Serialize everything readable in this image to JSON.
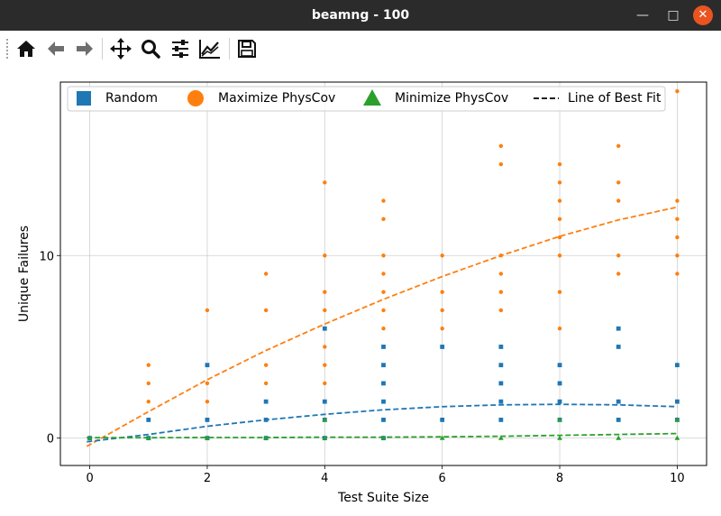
{
  "window": {
    "title": "beamng - 100"
  },
  "toolbar": {
    "icons": [
      "home-icon",
      "back-icon",
      "forward-icon",
      "pan-icon",
      "zoom-icon",
      "subplots-icon",
      "customize-icon",
      "save-icon"
    ]
  },
  "colors": {
    "random": "#1f77b4",
    "maximize": "#ff7f0e",
    "minimize": "#2ca02c",
    "titlebar": "#2b2b2b",
    "close": "#e95420"
  },
  "chart_data": {
    "type": "scatter",
    "xlabel": "Test Suite Size",
    "ylabel": "Unique Failures",
    "xlim": [
      -0.5,
      10.5
    ],
    "ylim": [
      -1.5,
      19.5
    ],
    "xticks": [
      "0",
      "2",
      "4",
      "6",
      "8",
      "10"
    ],
    "yticks": [
      "0",
      "10"
    ],
    "grid": true,
    "legend_placement": "top",
    "legend": [
      "Random",
      "Maximize PhysCov",
      "Minimize PhysCov",
      "Line of Best Fit"
    ],
    "series": [
      {
        "name": "Maximize PhysCov",
        "marker": "circle",
        "points": [
          [
            0,
            0
          ],
          [
            1,
            1
          ],
          [
            1,
            2
          ],
          [
            1,
            3
          ],
          [
            1,
            4
          ],
          [
            2,
            1
          ],
          [
            2,
            2
          ],
          [
            2,
            3
          ],
          [
            2,
            4
          ],
          [
            2,
            7
          ],
          [
            3,
            2
          ],
          [
            3,
            3
          ],
          [
            3,
            4
          ],
          [
            3,
            7
          ],
          [
            3,
            9
          ],
          [
            4,
            1
          ],
          [
            4,
            2
          ],
          [
            4,
            3
          ],
          [
            4,
            4
          ],
          [
            4,
            5
          ],
          [
            4,
            7
          ],
          [
            4,
            8
          ],
          [
            4,
            10
          ],
          [
            4,
            14
          ],
          [
            5,
            1
          ],
          [
            5,
            5
          ],
          [
            5,
            6
          ],
          [
            5,
            7
          ],
          [
            5,
            8
          ],
          [
            5,
            9
          ],
          [
            5,
            10
          ],
          [
            5,
            12
          ],
          [
            5,
            13
          ],
          [
            6,
            5
          ],
          [
            6,
            6
          ],
          [
            6,
            7
          ],
          [
            6,
            8
          ],
          [
            6,
            10
          ],
          [
            7,
            7
          ],
          [
            7,
            8
          ],
          [
            7,
            9
          ],
          [
            7,
            10
          ],
          [
            7,
            15
          ],
          [
            7,
            16
          ],
          [
            8,
            6
          ],
          [
            8,
            8
          ],
          [
            8,
            10
          ],
          [
            8,
            11
          ],
          [
            8,
            12
          ],
          [
            8,
            13
          ],
          [
            8,
            14
          ],
          [
            8,
            15
          ],
          [
            9,
            6
          ],
          [
            9,
            9
          ],
          [
            9,
            10
          ],
          [
            9,
            13
          ],
          [
            9,
            14
          ],
          [
            9,
            16
          ],
          [
            10,
            9
          ],
          [
            10,
            10
          ],
          [
            10,
            11
          ],
          [
            10,
            12
          ],
          [
            10,
            13
          ],
          [
            10,
            19
          ]
        ],
        "fit": [
          [
            -0.05,
            -0.45
          ],
          [
            1,
            1.45
          ],
          [
            2,
            3.2
          ],
          [
            3,
            4.8
          ],
          [
            4,
            6.25
          ],
          [
            5,
            7.6
          ],
          [
            6,
            8.85
          ],
          [
            7,
            10
          ],
          [
            8,
            11.05
          ],
          [
            9,
            11.95
          ],
          [
            10,
            12.65
          ]
        ]
      },
      {
        "name": "Random",
        "marker": "square",
        "points": [
          [
            0,
            0
          ],
          [
            1,
            0
          ],
          [
            1,
            1
          ],
          [
            2,
            0
          ],
          [
            2,
            1
          ],
          [
            2,
            4
          ],
          [
            3,
            0
          ],
          [
            3,
            1
          ],
          [
            3,
            2
          ],
          [
            4,
            0
          ],
          [
            4,
            1
          ],
          [
            4,
            2
          ],
          [
            4,
            6
          ],
          [
            5,
            0
          ],
          [
            5,
            1
          ],
          [
            5,
            2
          ],
          [
            5,
            3
          ],
          [
            5,
            4
          ],
          [
            5,
            5
          ],
          [
            6,
            1
          ],
          [
            6,
            5
          ],
          [
            7,
            1
          ],
          [
            7,
            2
          ],
          [
            7,
            3
          ],
          [
            7,
            4
          ],
          [
            7,
            5
          ],
          [
            8,
            1
          ],
          [
            8,
            2
          ],
          [
            8,
            3
          ],
          [
            8,
            4
          ],
          [
            9,
            1
          ],
          [
            9,
            2
          ],
          [
            9,
            5
          ],
          [
            9,
            6
          ],
          [
            10,
            1
          ],
          [
            10,
            2
          ],
          [
            10,
            4
          ]
        ],
        "fit": [
          [
            -0.05,
            -0.2
          ],
          [
            1,
            0.2
          ],
          [
            2,
            0.65
          ],
          [
            3,
            1
          ],
          [
            4,
            1.3
          ],
          [
            5,
            1.55
          ],
          [
            6,
            1.72
          ],
          [
            7,
            1.82
          ],
          [
            8,
            1.85
          ],
          [
            9,
            1.82
          ],
          [
            10,
            1.72
          ]
        ]
      },
      {
        "name": "Minimize PhysCov",
        "marker": "triangle",
        "points": [
          [
            0,
            0
          ],
          [
            1,
            0
          ],
          [
            2,
            0
          ],
          [
            3,
            0
          ],
          [
            4,
            0
          ],
          [
            4,
            1
          ],
          [
            5,
            0
          ],
          [
            6,
            0
          ],
          [
            7,
            0
          ],
          [
            8,
            0
          ],
          [
            8,
            1
          ],
          [
            9,
            0
          ],
          [
            10,
            0
          ],
          [
            10,
            1
          ]
        ],
        "fit": [
          [
            -0.05,
            0.02
          ],
          [
            1,
            0.02
          ],
          [
            2,
            0.03
          ],
          [
            3,
            0.03
          ],
          [
            4,
            0.05
          ],
          [
            5,
            0.05
          ],
          [
            6,
            0.07
          ],
          [
            7,
            0.1
          ],
          [
            8,
            0.15
          ],
          [
            9,
            0.2
          ],
          [
            10,
            0.25
          ]
        ]
      }
    ]
  }
}
